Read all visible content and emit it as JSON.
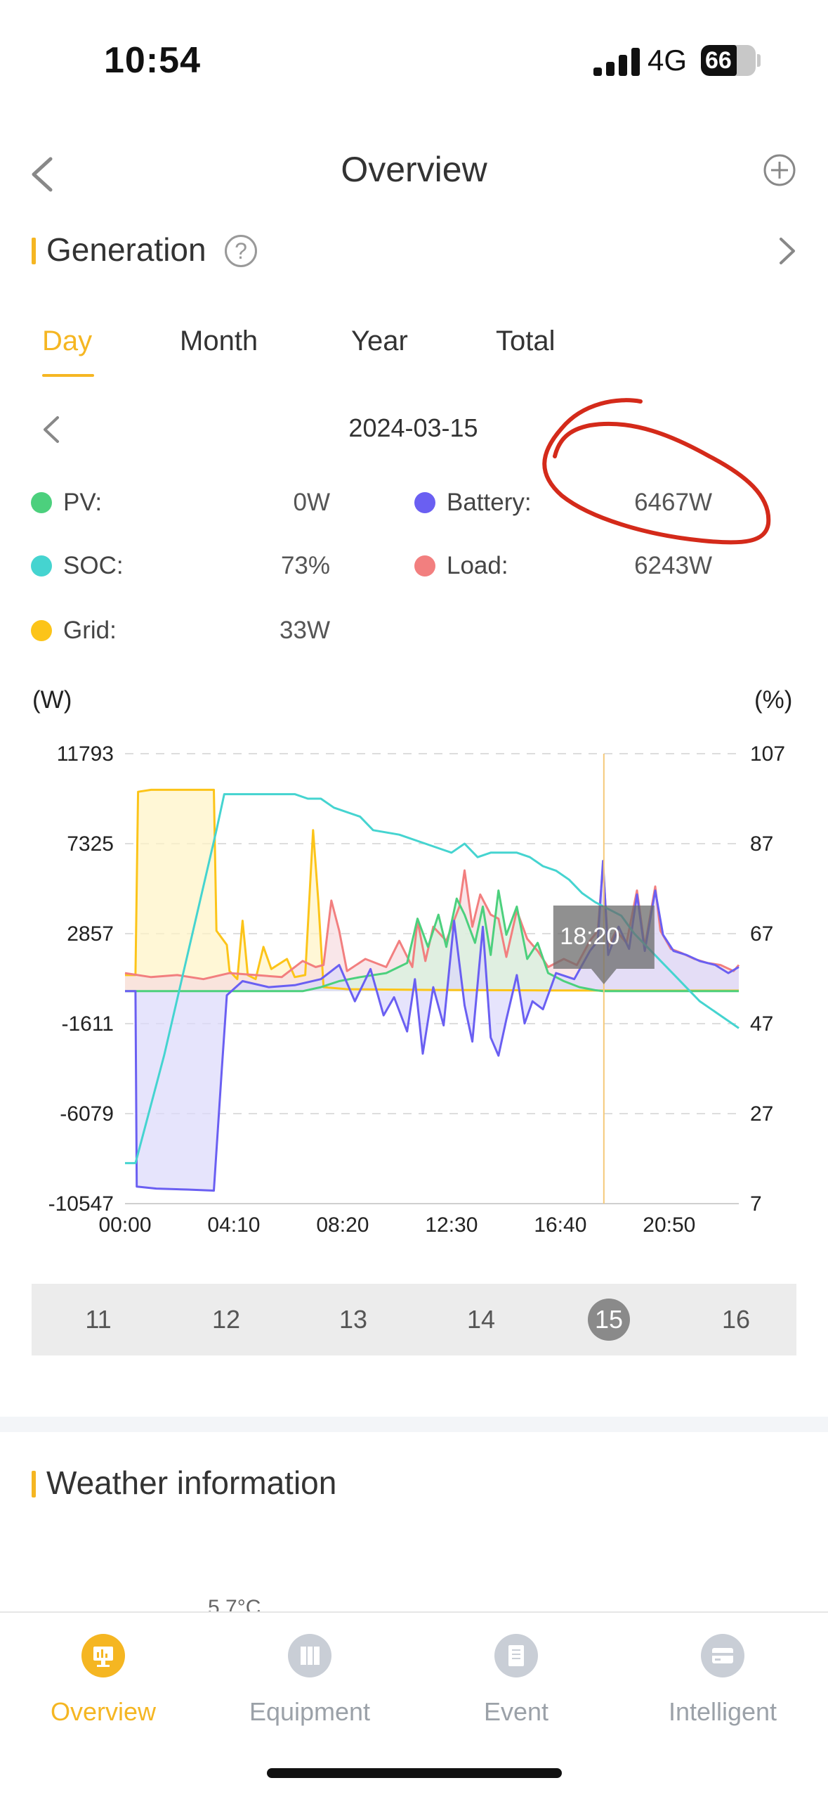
{
  "status_bar": {
    "time": "10:54",
    "network": "4G",
    "battery": "66",
    "battery_level": 0.66
  },
  "header": {
    "title": "Overview"
  },
  "generation": {
    "title": "Generation",
    "help_symbol": "?",
    "tabs": [
      "Day",
      "Month",
      "Year",
      "Total"
    ],
    "active_tab": "Day",
    "date": "2024-03-15"
  },
  "legend": [
    {
      "label": "PV:",
      "value": "0W",
      "color": "#4cd07d"
    },
    {
      "label": "Battery:",
      "value": "6467W",
      "color": "#6a5ff2"
    },
    {
      "label": "SOC:",
      "value": "73%",
      "color": "#45d4d0"
    },
    {
      "label": "Load:",
      "value": "6243W",
      "color": "#f27f7f"
    },
    {
      "label": "Grid:",
      "value": "33W",
      "color": "#fcc419"
    }
  ],
  "chart_data": {
    "type": "line",
    "left_unit": "(W)",
    "right_unit": "(%)",
    "y_ticks": [
      11793,
      7325,
      2857,
      -1611,
      -6079,
      -10547
    ],
    "y_tick_labels": [
      "11793",
      "7325",
      "2857",
      "-1611",
      "-6079",
      "-10547"
    ],
    "y2_ticks": [
      107,
      87,
      67,
      47,
      27,
      7
    ],
    "y2_tick_labels": [
      "107",
      "87",
      "67",
      "47",
      "27",
      "7"
    ],
    "ylim": [
      -10547,
      11793
    ],
    "y2lim": [
      7,
      107
    ],
    "xlim": [
      0,
      23.5
    ],
    "x_tick_hours": [
      0,
      4.1667,
      8.3333,
      12.5,
      16.6667,
      20.8333
    ],
    "x_tick_labels": [
      "00:00",
      "04:10",
      "08:20",
      "12:30",
      "16:40",
      "20:50"
    ],
    "cursor_hour": 18.3333,
    "tooltip": "18:20",
    "grid": true,
    "series": [
      {
        "name": "Grid",
        "axis": "left",
        "color": "#fcc419",
        "fill": "#fff3c4",
        "points": [
          [
            0,
            800
          ],
          [
            0.4,
            800
          ],
          [
            0.5,
            9900
          ],
          [
            1.0,
            10000
          ],
          [
            2.0,
            10000
          ],
          [
            3.4,
            10000
          ],
          [
            3.5,
            3000
          ],
          [
            3.9,
            2300
          ],
          [
            4.0,
            1000
          ],
          [
            4.3,
            600
          ],
          [
            4.5,
            3500
          ],
          [
            4.7,
            800
          ],
          [
            5.0,
            600
          ],
          [
            5.3,
            2200
          ],
          [
            5.6,
            1100
          ],
          [
            6.2,
            1600
          ],
          [
            6.5,
            700
          ],
          [
            6.9,
            800
          ],
          [
            7.2,
            8000
          ],
          [
            7.4,
            4500
          ],
          [
            7.6,
            200
          ],
          [
            8.5,
            100
          ],
          [
            12,
            60
          ],
          [
            16,
            40
          ],
          [
            18.3,
            33
          ],
          [
            20,
            30
          ],
          [
            23.5,
            30
          ]
        ]
      },
      {
        "name": "Load",
        "axis": "left",
        "color": "#f27f7f",
        "fill": "#f7dce0",
        "points": [
          [
            0,
            900
          ],
          [
            1,
            700
          ],
          [
            2,
            800
          ],
          [
            3,
            600
          ],
          [
            4,
            900
          ],
          [
            5,
            800
          ],
          [
            6,
            700
          ],
          [
            6.8,
            1500
          ],
          [
            7.3,
            1200
          ],
          [
            7.6,
            1300
          ],
          [
            7.9,
            4500
          ],
          [
            8.2,
            3000
          ],
          [
            8.5,
            1000
          ],
          [
            9.2,
            1600
          ],
          [
            10,
            1200
          ],
          [
            10.5,
            2500
          ],
          [
            11,
            1200
          ],
          [
            11.2,
            3500
          ],
          [
            11.5,
            1500
          ],
          [
            11.8,
            3200
          ],
          [
            12.3,
            2500
          ],
          [
            12.8,
            4200
          ],
          [
            13,
            6000
          ],
          [
            13.3,
            3200
          ],
          [
            13.6,
            4800
          ],
          [
            14,
            3800
          ],
          [
            14.3,
            3600
          ],
          [
            14.6,
            1700
          ],
          [
            15,
            4000
          ],
          [
            15.4,
            2600
          ],
          [
            15.8,
            2000
          ],
          [
            16.2,
            1200
          ],
          [
            16.8,
            1600
          ],
          [
            17.3,
            1300
          ],
          [
            17.8,
            2500
          ],
          [
            18.1,
            3000
          ],
          [
            18.3,
            6243
          ],
          [
            18.5,
            2200
          ],
          [
            18.8,
            3000
          ],
          [
            19.2,
            2400
          ],
          [
            19.6,
            5000
          ],
          [
            19.9,
            2200
          ],
          [
            20.3,
            5200
          ],
          [
            20.5,
            3000
          ],
          [
            20.9,
            2100
          ],
          [
            21.3,
            1900
          ],
          [
            21.8,
            1600
          ],
          [
            22.3,
            1400
          ],
          [
            22.8,
            1300
          ],
          [
            23.3,
            1000
          ],
          [
            23.5,
            1300
          ]
        ]
      },
      {
        "name": "PV",
        "axis": "left",
        "color": "#4cd07d",
        "fill": "#d6f2dd",
        "points": [
          [
            0,
            0
          ],
          [
            6.8,
            0
          ],
          [
            7.5,
            200
          ],
          [
            8.2,
            500
          ],
          [
            9,
            700
          ],
          [
            10,
            900
          ],
          [
            10.8,
            1400
          ],
          [
            11.2,
            3600
          ],
          [
            11.6,
            2200
          ],
          [
            12,
            3800
          ],
          [
            12.3,
            2200
          ],
          [
            12.7,
            4600
          ],
          [
            13,
            3800
          ],
          [
            13.4,
            2400
          ],
          [
            13.7,
            4200
          ],
          [
            14,
            1800
          ],
          [
            14.3,
            5000
          ],
          [
            14.6,
            2800
          ],
          [
            15,
            4200
          ],
          [
            15.4,
            1600
          ],
          [
            15.8,
            2400
          ],
          [
            16.2,
            900
          ],
          [
            16.8,
            500
          ],
          [
            17.4,
            200
          ],
          [
            18,
            50
          ],
          [
            18.3,
            0
          ],
          [
            23.5,
            0
          ]
        ]
      },
      {
        "name": "Battery",
        "axis": "left",
        "color": "#6a5ff2",
        "fill": "#dcd8fb",
        "points": [
          [
            0,
            0
          ],
          [
            0.4,
            0
          ],
          [
            0.45,
            -9700
          ],
          [
            1.2,
            -9800
          ],
          [
            2.4,
            -9850
          ],
          [
            3.4,
            -9900
          ],
          [
            3.7,
            -4000
          ],
          [
            3.9,
            -200
          ],
          [
            4.5,
            500
          ],
          [
            5.5,
            200
          ],
          [
            6.5,
            300
          ],
          [
            7.5,
            600
          ],
          [
            8.2,
            1300
          ],
          [
            8.8,
            -500
          ],
          [
            9.4,
            1100
          ],
          [
            9.9,
            -1200
          ],
          [
            10.3,
            -300
          ],
          [
            10.8,
            -2000
          ],
          [
            11.1,
            600
          ],
          [
            11.4,
            -3100
          ],
          [
            11.8,
            200
          ],
          [
            12.2,
            -1700
          ],
          [
            12.6,
            3500
          ],
          [
            13,
            -700
          ],
          [
            13.3,
            -2500
          ],
          [
            13.7,
            3200
          ],
          [
            14,
            -2300
          ],
          [
            14.3,
            -3200
          ],
          [
            14.6,
            -1400
          ],
          [
            15,
            800
          ],
          [
            15.3,
            -1600
          ],
          [
            15.6,
            -500
          ],
          [
            16,
            -900
          ],
          [
            16.5,
            900
          ],
          [
            17.2,
            600
          ],
          [
            17.8,
            2000
          ],
          [
            18.1,
            2500
          ],
          [
            18.3,
            6467
          ],
          [
            18.5,
            1800
          ],
          [
            18.9,
            3200
          ],
          [
            19.3,
            2100
          ],
          [
            19.6,
            4800
          ],
          [
            19.9,
            2000
          ],
          [
            20.3,
            5000
          ],
          [
            20.6,
            2800
          ],
          [
            21,
            2000
          ],
          [
            21.5,
            1800
          ],
          [
            22,
            1500
          ],
          [
            22.6,
            1300
          ],
          [
            23.1,
            900
          ],
          [
            23.5,
            1200
          ]
        ]
      },
      {
        "name": "SOC",
        "axis": "right",
        "color": "#45d4d0",
        "fill": "",
        "points": [
          [
            0,
            16
          ],
          [
            0.4,
            16
          ],
          [
            1.5,
            40
          ],
          [
            2.5,
            65
          ],
          [
            3.5,
            90
          ],
          [
            3.8,
            98
          ],
          [
            4,
            98
          ],
          [
            6.5,
            98
          ],
          [
            7,
            97
          ],
          [
            7.5,
            97
          ],
          [
            8,
            95
          ],
          [
            9,
            93
          ],
          [
            9.5,
            90
          ],
          [
            10.5,
            89
          ],
          [
            11.5,
            87
          ],
          [
            12.5,
            85
          ],
          [
            13,
            87
          ],
          [
            13.5,
            84
          ],
          [
            14,
            85
          ],
          [
            15,
            85
          ],
          [
            15.5,
            84
          ],
          [
            16,
            82
          ],
          [
            16.5,
            81
          ],
          [
            17,
            79
          ],
          [
            17.5,
            76
          ],
          [
            18,
            74
          ],
          [
            18.33,
            73
          ],
          [
            19,
            71
          ],
          [
            19.5,
            67
          ],
          [
            20,
            64
          ],
          [
            20.5,
            61
          ],
          [
            21,
            58
          ],
          [
            21.5,
            55
          ],
          [
            22,
            52
          ],
          [
            22.5,
            50
          ],
          [
            23,
            48
          ],
          [
            23.5,
            46
          ]
        ]
      }
    ]
  },
  "days": {
    "items": [
      "11",
      "12",
      "13",
      "14",
      "15",
      "16"
    ],
    "active": "15"
  },
  "weather": {
    "title": "Weather information",
    "temperature": "5.7°C"
  },
  "nav": {
    "items": [
      {
        "label": "Overview",
        "icon": "monitor-icon"
      },
      {
        "label": "Equipment",
        "icon": "panels-icon"
      },
      {
        "label": "Event",
        "icon": "clipboard-icon"
      },
      {
        "label": "Intelligent",
        "icon": "card-icon"
      }
    ],
    "active": "Overview"
  }
}
